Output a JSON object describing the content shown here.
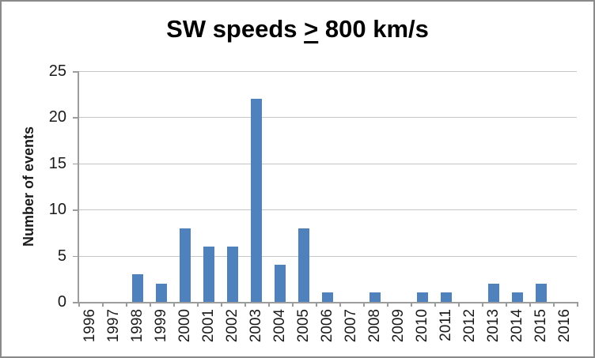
{
  "chart_data": {
    "type": "bar",
    "title": "SW speeds ≥ 800 km/s",
    "title_parts": {
      "pre": "SW speeds ",
      "underlined": ">",
      "post": " 800 km/s"
    },
    "xlabel": "",
    "ylabel": "Number of events",
    "categories": [
      "1996",
      "1997",
      "1998",
      "1999",
      "2000",
      "2001",
      "2002",
      "2003",
      "2004",
      "2005",
      "2006",
      "2007",
      "2008",
      "2009",
      "2010",
      "2011",
      "2012",
      "2013",
      "2014",
      "2015",
      "2016"
    ],
    "values": [
      0,
      0,
      3,
      2,
      8,
      6,
      6,
      22,
      4,
      8,
      1,
      0,
      1,
      0,
      1,
      1,
      0,
      2,
      1,
      2,
      0
    ],
    "ylim": [
      0,
      25
    ],
    "yticks": [
      0,
      5,
      10,
      15,
      20,
      25
    ],
    "grid": "horizontal",
    "legend": "none",
    "colors": {
      "bar": "#4f81bd",
      "gridline": "#c5c5c5",
      "axis": "#9c9c9c",
      "text": "#1a1a1a",
      "title": "#000000",
      "frame_border": "#8a8a8a",
      "background": "#ffffff"
    }
  }
}
